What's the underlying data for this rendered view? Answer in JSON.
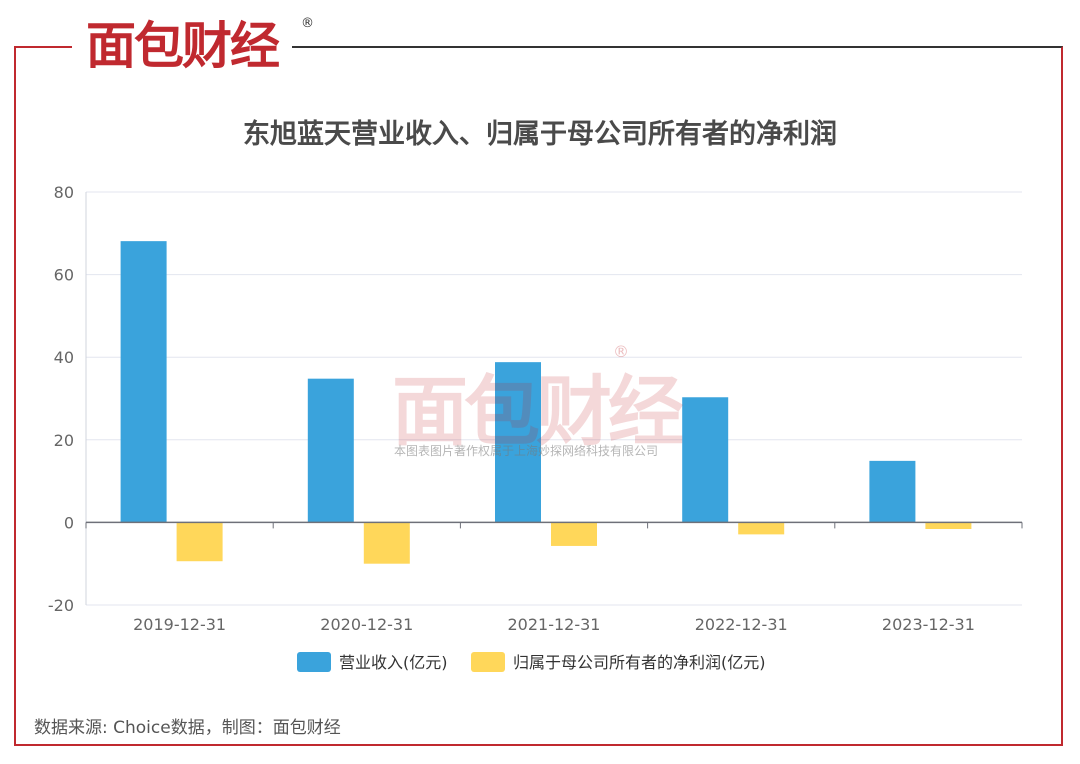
{
  "brand": {
    "logo": "面包财经",
    "registered": "®"
  },
  "watermark": {
    "logo": "面包财经",
    "registered": "®",
    "copyright": "本图表图片著作权属于上海妙探网络科技有限公司"
  },
  "source": "数据来源: Choice数据，制图：面包财经",
  "colors": {
    "revenue": "#3aa3dc",
    "profit": "#ffd75a",
    "frame": "#c0292f"
  },
  "chart_data": {
    "type": "bar",
    "title": "东旭蓝天营业收入、归属于母公司所有者的净利润",
    "categories": [
      "2019-12-31",
      "2020-12-31",
      "2021-12-31",
      "2022-12-31",
      "2023-12-31"
    ],
    "series": [
      {
        "name": "营业收入(亿元)",
        "values": [
          68.1,
          34.8,
          38.8,
          30.3,
          14.9
        ]
      },
      {
        "name": "归属于母公司所有者的净利润(亿元)",
        "values": [
          -9.4,
          -10.0,
          -5.7,
          -2.9,
          -1.6
        ]
      }
    ],
    "ylim": [
      -20,
      80
    ],
    "yticks": [
      80,
      60,
      40,
      20,
      0,
      -20
    ],
    "grid": true,
    "legend": "bottom"
  }
}
